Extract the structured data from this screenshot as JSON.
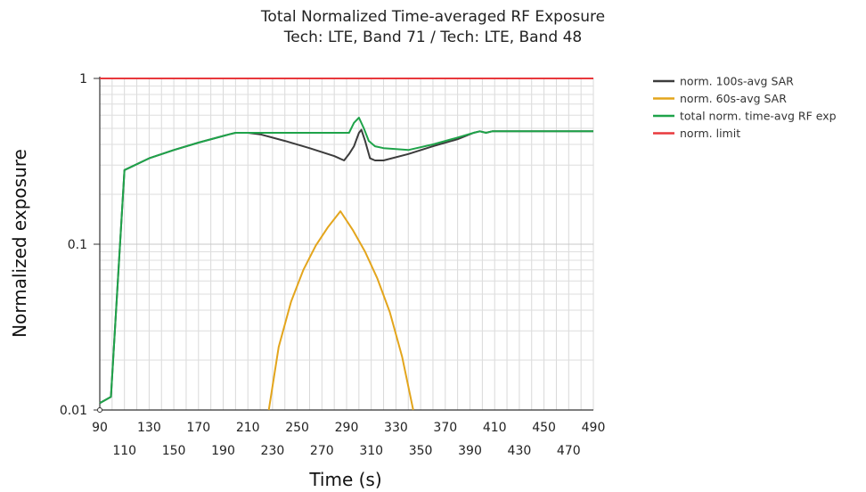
{
  "chart_data": {
    "type": "line",
    "title": "Total Normalized Time-averaged RF Exposure",
    "subtitle": "Tech: LTE, Band 71 / Tech: LTE, Band 48",
    "xlabel": "Time (s)",
    "ylabel": "Normalized exposure",
    "xlim": [
      90,
      490
    ],
    "ylim": [
      0.01,
      1
    ],
    "yscale": "log",
    "x_ticks": [
      90,
      110,
      130,
      150,
      170,
      190,
      210,
      230,
      250,
      270,
      290,
      310,
      330,
      350,
      370,
      390,
      410,
      430,
      450,
      470,
      490
    ],
    "y_ticks": [
      {
        "value": 0.01,
        "label": "0.01"
      },
      {
        "value": 0.1,
        "label": "0.1"
      },
      {
        "value": 1,
        "label": "1"
      }
    ],
    "grid": true,
    "legend_position": "right",
    "series": [
      {
        "name": "norm. 100s-avg SAR",
        "color": "#3c3c3c",
        "x": [
          90,
          99,
          110,
          130,
          150,
          170,
          195,
          200,
          210,
          220,
          240,
          260,
          280,
          288,
          292,
          296,
          300,
          302,
          305,
          309,
          313,
          320,
          340,
          360,
          380,
          393,
          398,
          403,
          408,
          420,
          450,
          490
        ],
        "y": [
          0.011,
          0.012,
          0.28,
          0.33,
          0.37,
          0.41,
          0.46,
          0.47,
          0.47,
          0.46,
          0.42,
          0.38,
          0.34,
          0.32,
          0.35,
          0.39,
          0.47,
          0.49,
          0.42,
          0.33,
          0.32,
          0.32,
          0.35,
          0.39,
          0.43,
          0.47,
          0.48,
          0.47,
          0.48,
          0.48,
          0.48,
          0.48
        ]
      },
      {
        "name": "norm. 60s-avg SAR",
        "color": "#e3a51c",
        "x": [
          227,
          235,
          245,
          255,
          265,
          275,
          285,
          295,
          305,
          315,
          325,
          335,
          344
        ],
        "y": [
          0.01,
          0.024,
          0.045,
          0.07,
          0.098,
          0.127,
          0.158,
          0.122,
          0.09,
          0.062,
          0.039,
          0.021,
          0.01
        ]
      },
      {
        "name": "total norm. time-avg RF exp",
        "color": "#1fa34a",
        "x": [
          90,
          99,
          110,
          130,
          150,
          170,
          195,
          200,
          210,
          225,
          245,
          265,
          285,
          292,
          296,
          300,
          304,
          308,
          313,
          320,
          340,
          360,
          380,
          393,
          398,
          403,
          408,
          420,
          450,
          490
        ],
        "y": [
          0.011,
          0.012,
          0.28,
          0.33,
          0.37,
          0.41,
          0.46,
          0.47,
          0.47,
          0.47,
          0.47,
          0.47,
          0.47,
          0.47,
          0.54,
          0.58,
          0.5,
          0.42,
          0.39,
          0.38,
          0.37,
          0.4,
          0.44,
          0.47,
          0.48,
          0.47,
          0.48,
          0.48,
          0.48,
          0.48
        ]
      },
      {
        "name": "norm. limit",
        "color": "#e8383d",
        "x": [
          90,
          490
        ],
        "y": [
          1,
          1
        ]
      }
    ]
  }
}
